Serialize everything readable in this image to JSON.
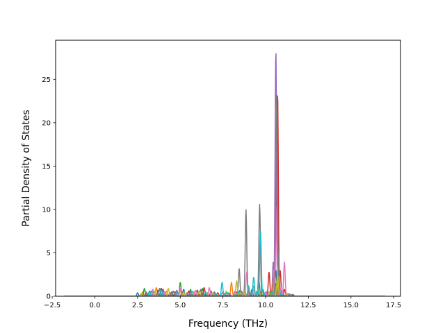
{
  "chart_data": {
    "type": "line",
    "xlabel": "Frequency (THz)",
    "ylabel": "Partial Density of States",
    "xlim": [
      -2.3,
      17.9
    ],
    "ylim": [
      0,
      29.5
    ],
    "xticks": [
      -2.5,
      0.0,
      2.5,
      5.0,
      7.5,
      10.0,
      12.5,
      15.0,
      17.5
    ],
    "xtick_labels": [
      "−2.5",
      "0.0",
      "2.5",
      "5.0",
      "7.5",
      "10.0",
      "12.5",
      "15.0",
      "17.5"
    ],
    "yticks": [
      0,
      5,
      10,
      15,
      20,
      25
    ],
    "ytick_labels": [
      "0",
      "5",
      "10",
      "15",
      "20",
      "25"
    ],
    "grid": false,
    "legend": "none",
    "x_range": [
      -1.8,
      17.0
    ],
    "series": [
      {
        "color": "#1f77b4",
        "values": [
          [
            0.8,
            0
          ],
          [
            2.5,
            0.4
          ],
          [
            3.2,
            0.6
          ],
          [
            3.8,
            0.9
          ],
          [
            4.5,
            0.5
          ],
          [
            5.2,
            0.8
          ],
          [
            6.0,
            0.6
          ],
          [
            7.0,
            0.3
          ],
          [
            7.5,
            0.5
          ],
          [
            8.2,
            0.3
          ],
          [
            9.0,
            0.8
          ],
          [
            9.6,
            2.0
          ],
          [
            10.2,
            0.5
          ],
          [
            10.6,
            3.0
          ],
          [
            11.0,
            0.3
          ],
          [
            12.0,
            0
          ]
        ]
      },
      {
        "color": "#ff7f0e",
        "values": [
          [
            0.8,
            0
          ],
          [
            2.8,
            0.5
          ],
          [
            3.6,
            1.0
          ],
          [
            4.2,
            0.6
          ],
          [
            5.0,
            0.7
          ],
          [
            5.8,
            0.5
          ],
          [
            6.6,
            0.4
          ],
          [
            7.4,
            0.3
          ],
          [
            8.0,
            1.6
          ],
          [
            8.6,
            0.6
          ],
          [
            9.3,
            1.2
          ],
          [
            10.0,
            0.4
          ],
          [
            10.5,
            3.0
          ],
          [
            11.0,
            0.5
          ],
          [
            12.0,
            0
          ]
        ]
      },
      {
        "color": "#2ca02c",
        "values": [
          [
            0.8,
            0
          ],
          [
            2.9,
            0.9
          ],
          [
            3.4,
            0.5
          ],
          [
            4.0,
            0.8
          ],
          [
            4.6,
            0.6
          ],
          [
            5.0,
            1.6
          ],
          [
            5.6,
            0.8
          ],
          [
            6.3,
            0.9
          ],
          [
            7.0,
            0.5
          ],
          [
            7.8,
            0.4
          ],
          [
            8.5,
            0.7
          ],
          [
            9.2,
            0.8
          ],
          [
            9.9,
            0.4
          ],
          [
            10.6,
            1.5
          ],
          [
            11.2,
            0.2
          ],
          [
            12.0,
            0
          ]
        ]
      },
      {
        "color": "#d62728",
        "values": [
          [
            0.8,
            0
          ],
          [
            3.0,
            0.4
          ],
          [
            3.9,
            0.9
          ],
          [
            4.7,
            0.5
          ],
          [
            5.5,
            0.6
          ],
          [
            6.4,
            1.0
          ],
          [
            7.2,
            0.4
          ],
          [
            8.3,
            0.5
          ],
          [
            9.0,
            0.6
          ],
          [
            9.8,
            0.8
          ],
          [
            10.2,
            2.8
          ],
          [
            10.4,
            0.5
          ],
          [
            10.6,
            11.5
          ],
          [
            10.7,
            23.5
          ],
          [
            10.85,
            3.0
          ],
          [
            11.1,
            0.8
          ],
          [
            11.6,
            0.2
          ],
          [
            12.5,
            0
          ]
        ]
      },
      {
        "color": "#9467bd",
        "values": [
          [
            0.8,
            0
          ],
          [
            3.3,
            0.6
          ],
          [
            4.0,
            0.4
          ],
          [
            4.8,
            0.7
          ],
          [
            5.6,
            0.5
          ],
          [
            6.2,
            0.8
          ],
          [
            7.0,
            0.5
          ],
          [
            7.9,
            0.3
          ],
          [
            8.8,
            0.5
          ],
          [
            9.5,
            0.5
          ],
          [
            10.1,
            0.6
          ],
          [
            10.45,
            4.0
          ],
          [
            10.6,
            28.4
          ],
          [
            10.75,
            5.0
          ],
          [
            11.0,
            0.4
          ],
          [
            12.0,
            0
          ]
        ]
      },
      {
        "color": "#8c564b",
        "values": [
          [
            0.8,
            0
          ],
          [
            3.1,
            0.3
          ],
          [
            3.7,
            0.7
          ],
          [
            4.4,
            0.4
          ],
          [
            5.1,
            0.5
          ],
          [
            6.0,
            0.7
          ],
          [
            6.8,
            0.6
          ],
          [
            7.6,
            0.3
          ],
          [
            8.4,
            0.4
          ],
          [
            9.1,
            0.3
          ],
          [
            9.7,
            0.5
          ],
          [
            10.3,
            0.4
          ],
          [
            10.7,
            0.9
          ],
          [
            11.4,
            0.2
          ],
          [
            12.0,
            0
          ]
        ]
      },
      {
        "color": "#e377c2",
        "values": [
          [
            0.8,
            0
          ],
          [
            3.4,
            0.8
          ],
          [
            4.1,
            0.5
          ],
          [
            5.0,
            0.9
          ],
          [
            5.9,
            0.7
          ],
          [
            6.7,
            1.0
          ],
          [
            7.5,
            0.4
          ],
          [
            8.2,
            0.6
          ],
          [
            8.9,
            2.8
          ],
          [
            9.3,
            0.7
          ],
          [
            10.0,
            0.5
          ],
          [
            10.6,
            10.5
          ],
          [
            10.9,
            1.0
          ],
          [
            11.1,
            4.0
          ],
          [
            11.4,
            0.3
          ],
          [
            12.0,
            0
          ]
        ]
      },
      {
        "color": "#7f7f7f",
        "values": [
          [
            0.8,
            0
          ],
          [
            3.0,
            0.5
          ],
          [
            3.8,
            0.8
          ],
          [
            4.6,
            0.6
          ],
          [
            5.4,
            0.4
          ],
          [
            6.2,
            0.7
          ],
          [
            7.0,
            0.4
          ],
          [
            7.7,
            0.5
          ],
          [
            8.2,
            0.3
          ],
          [
            8.45,
            3.2
          ],
          [
            8.6,
            0.5
          ],
          [
            8.85,
            10.0
          ],
          [
            9.0,
            0.5
          ],
          [
            9.5,
            0.6
          ],
          [
            9.65,
            10.6
          ],
          [
            9.8,
            0.6
          ],
          [
            10.3,
            0.6
          ],
          [
            10.65,
            23.0
          ],
          [
            10.8,
            1.0
          ],
          [
            11.3,
            0.3
          ],
          [
            12.0,
            0
          ]
        ]
      },
      {
        "color": "#bcbd22",
        "values": [
          [
            0.8,
            0
          ],
          [
            2.7,
            0.3
          ],
          [
            3.5,
            0.6
          ],
          [
            4.3,
            0.9
          ],
          [
            5.2,
            0.5
          ],
          [
            6.1,
            0.6
          ],
          [
            6.9,
            0.4
          ],
          [
            7.7,
            0.6
          ],
          [
            8.3,
            1.8
          ],
          [
            8.8,
            0.5
          ],
          [
            9.6,
            1.0
          ],
          [
            10.2,
            0.5
          ],
          [
            10.7,
            2.5
          ],
          [
            11.2,
            0.3
          ],
          [
            12.0,
            0
          ]
        ]
      },
      {
        "color": "#17becf",
        "values": [
          [
            0.8,
            0
          ],
          [
            3.2,
            0.5
          ],
          [
            3.9,
            0.7
          ],
          [
            4.8,
            0.4
          ],
          [
            5.7,
            0.6
          ],
          [
            6.5,
            0.5
          ],
          [
            7.1,
            0.3
          ],
          [
            7.45,
            1.6
          ],
          [
            7.7,
            0.4
          ],
          [
            8.4,
            0.6
          ],
          [
            9.0,
            1.2
          ],
          [
            9.3,
            2.2
          ],
          [
            9.5,
            0.5
          ],
          [
            9.7,
            7.6
          ],
          [
            9.85,
            0.8
          ],
          [
            10.4,
            0.5
          ],
          [
            10.9,
            0.4
          ],
          [
            11.5,
            0.2
          ],
          [
            12.0,
            0
          ]
        ]
      }
    ]
  }
}
